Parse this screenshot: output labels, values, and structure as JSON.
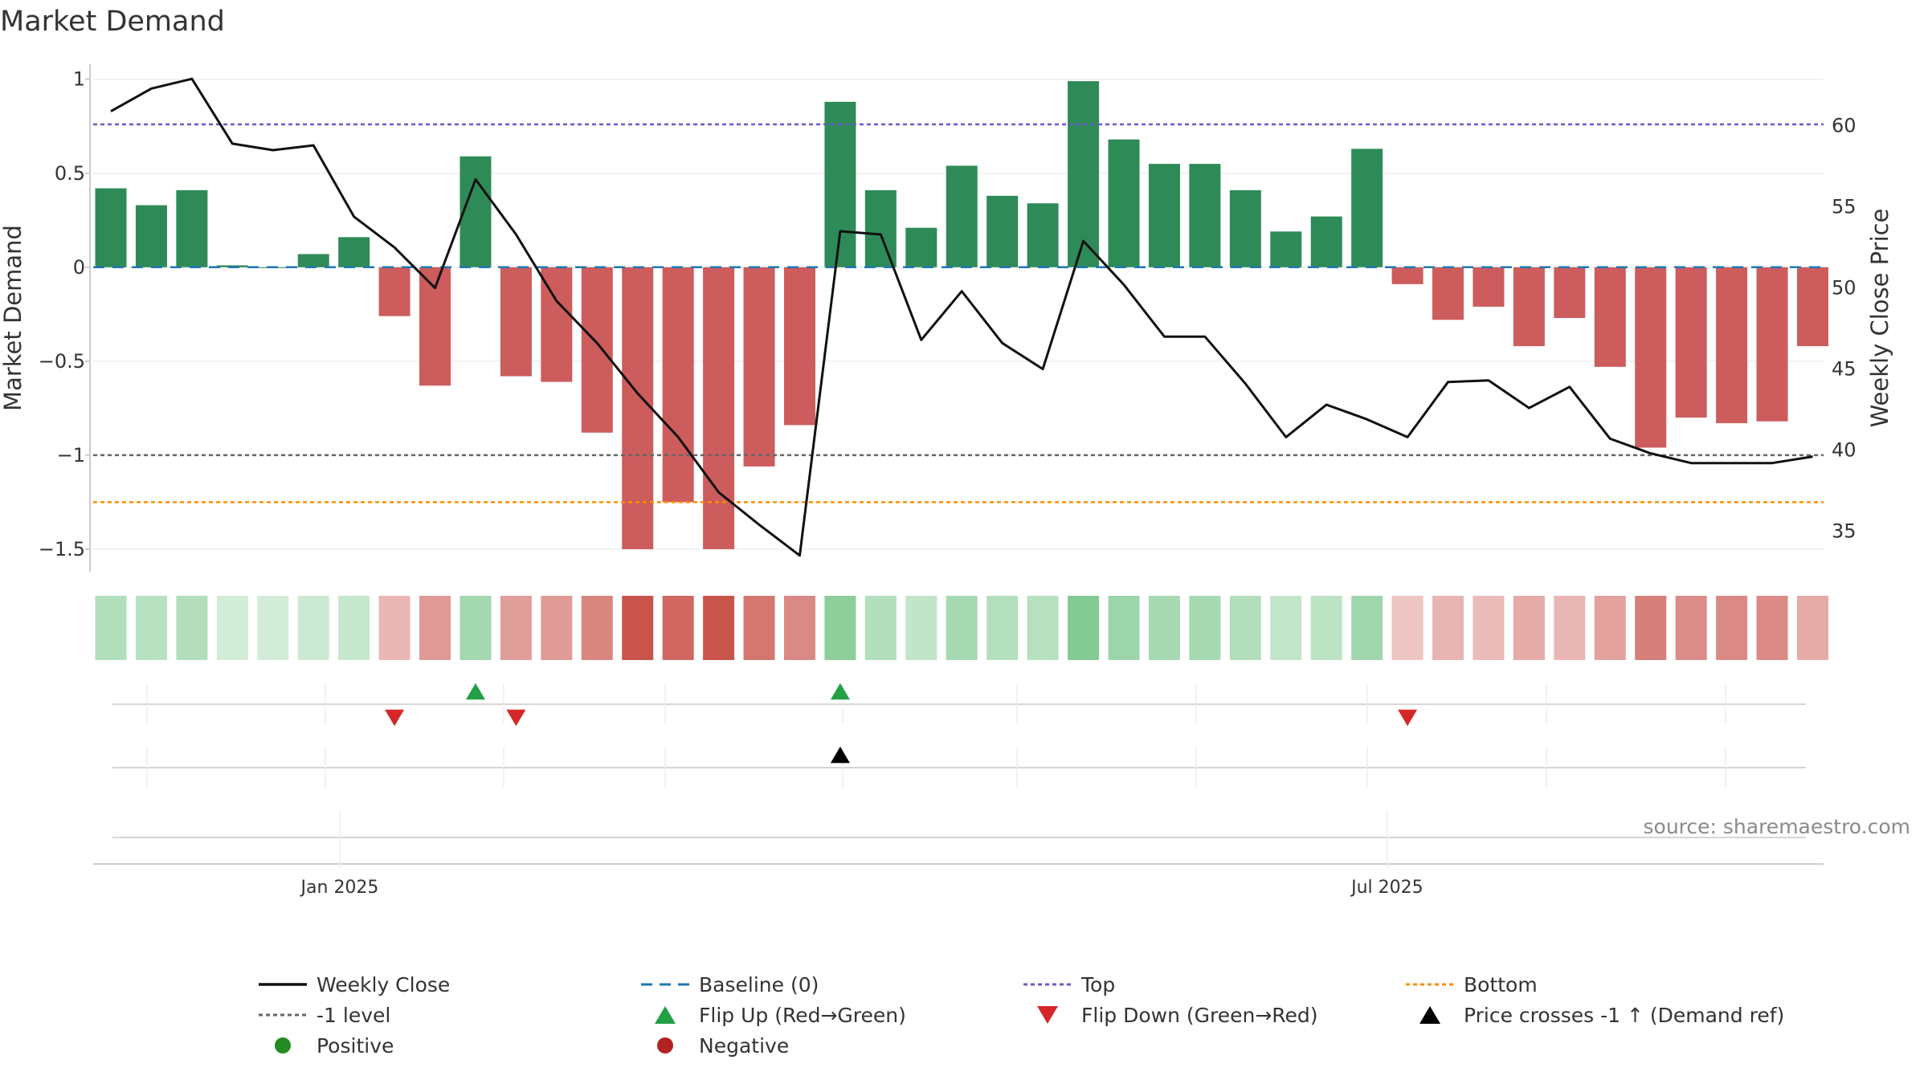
{
  "chart_data": {
    "type": "bar",
    "title": "Market Demand",
    "ylabel_left": "Market Demand",
    "ylabel_right": "Weekly Close Price",
    "ylim_left": [
      -1.62,
      1.08
    ],
    "ylim_right": [
      32.5,
      63.8
    ],
    "yticks_left": [
      1,
      0.5,
      0,
      -0.5,
      -1,
      -1.5
    ],
    "ytick_labels_left": [
      "1",
      "0.5",
      "0",
      "−0.5",
      "−1",
      "−1.5"
    ],
    "yticks_right": [
      60,
      55,
      50,
      45,
      40,
      35
    ],
    "ytick_labels_right": [
      "60",
      "55",
      "50",
      "45",
      "40",
      "35"
    ],
    "x_ticks": [
      {
        "label": "Jan 2025",
        "week_index": 5.65
      },
      {
        "label": "Jul 2025",
        "week_index": 31.5
      }
    ],
    "weeks": 43,
    "demand": [
      0.42,
      0.33,
      0.41,
      0.01,
      0.0,
      0.07,
      0.16,
      -0.26,
      -0.63,
      0.59,
      -0.58,
      -0.61,
      -0.88,
      -1.5,
      -1.25,
      -1.5,
      -1.06,
      -0.84,
      0.88,
      0.41,
      0.21,
      0.54,
      0.38,
      0.34,
      0.99,
      0.68,
      0.55,
      0.55,
      0.41,
      0.19,
      0.27,
      0.63,
      -0.09,
      -0.28,
      -0.21,
      -0.42,
      -0.27,
      -0.53,
      -0.96,
      -0.8,
      -0.83,
      -0.82,
      -0.42
    ],
    "weekly_close": [
      60.9,
      62.3,
      62.9,
      58.9,
      58.5,
      58.8,
      54.4,
      52.5,
      50.0,
      56.7,
      53.3,
      49.2,
      46.6,
      43.5,
      40.8,
      37.4,
      35.4,
      33.5,
      53.5,
      53.3,
      46.8,
      49.8,
      46.6,
      45.0,
      52.9,
      50.2,
      47.0,
      47.0,
      44.1,
      40.8,
      42.8,
      41.9,
      40.8,
      44.2,
      44.3,
      42.6,
      43.9,
      40.7,
      39.8,
      39.2,
      39.2,
      39.2,
      39.6
    ],
    "reference_lines": {
      "baseline": 0,
      "top": 0.76,
      "minus_one_level": -1,
      "bottom": -1.25
    },
    "flip_up_weeks": [
      9,
      18
    ],
    "flip_down_weeks": [
      7,
      10,
      32
    ],
    "price_cross_weeks": [
      18
    ],
    "colors": {
      "positive_bar": "#2e8b57",
      "negative_bar": "#cd5c5c",
      "price_line": "#111111",
      "baseline": "#1f77b4",
      "top": "#6a5acd",
      "minus_one": "#666666",
      "bottom": "#ff8c00",
      "flip_up": "#22a045",
      "flip_down": "#d62728",
      "price_cross": "#000000",
      "legend_positive": "#228b22",
      "legend_negative": "#b22222"
    },
    "legend": [
      {
        "key": "weekly_close",
        "label": "Weekly Close",
        "marker": "line"
      },
      {
        "key": "baseline",
        "label": "Baseline (0)",
        "marker": "dashed"
      },
      {
        "key": "top",
        "label": "Top",
        "marker": "dotted"
      },
      {
        "key": "bottom",
        "label": "Bottom",
        "marker": "dotted"
      },
      {
        "key": "minus_one",
        "label": "-1 level",
        "marker": "dotted"
      },
      {
        "key": "flip_up",
        "label": "Flip Up (Red→Green)",
        "marker": "triangle-up"
      },
      {
        "key": "flip_down",
        "label": "Flip Down (Green→Red)",
        "marker": "triangle-down"
      },
      {
        "key": "price_cross",
        "label": "Price crosses -1 ↑ (Demand ref)",
        "marker": "triangle-up"
      },
      {
        "key": "positive",
        "label": "Positive",
        "marker": "circle"
      },
      {
        "key": "negative",
        "label": "Negative",
        "marker": "circle"
      }
    ],
    "source": "source: sharemaestro.com"
  }
}
